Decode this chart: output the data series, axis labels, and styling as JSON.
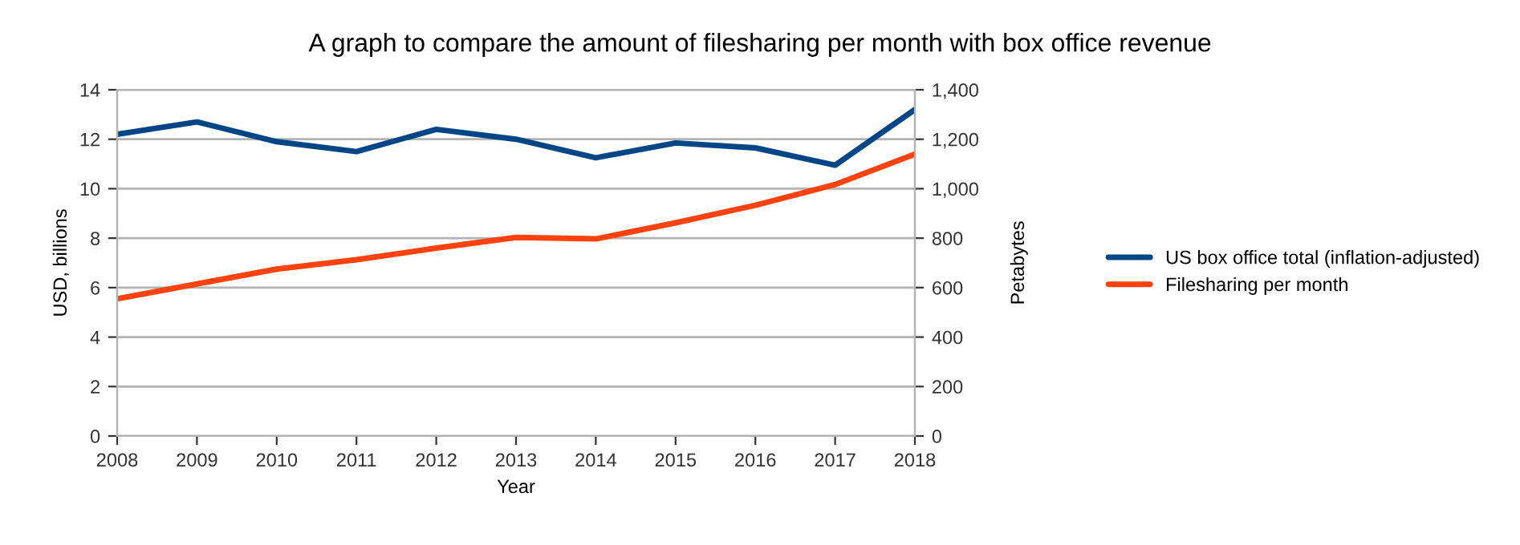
{
  "chart_data": {
    "type": "line",
    "title": "A graph to compare the amount of filesharing per month with box office revenue",
    "xlabel": "Year",
    "ylabel": "USD, billions",
    "y2label": "Petabytes",
    "x": [
      2008,
      2009,
      2010,
      2011,
      2012,
      2013,
      2014,
      2015,
      2016,
      2017,
      2018
    ],
    "series": [
      {
        "name": "US box office total (inflation-adjusted)",
        "color": "#004586",
        "values": [
          12.2,
          12.7,
          11.9,
          11.5,
          12.4,
          12.0,
          11.25,
          11.85,
          11.65,
          10.95,
          13.2
        ]
      },
      {
        "name": "Filesharing per month",
        "color": "#ff420e",
        "axis": "y2",
        "values": [
          555,
          615,
          675,
          713,
          760,
          803,
          797,
          862,
          933,
          1017,
          1140
        ]
      }
    ],
    "xlim": [
      2008,
      2018
    ],
    "xticks": [
      2008,
      2009,
      2010,
      2011,
      2012,
      2013,
      2014,
      2015,
      2016,
      2017,
      2018
    ],
    "ylim": [
      0,
      14
    ],
    "yticks": [
      0,
      2,
      4,
      6,
      8,
      10,
      12,
      14
    ],
    "y2lim": [
      0,
      1400
    ],
    "y2ticks": [
      0,
      {
        "value": 200,
        "label": "200"
      },
      {
        "value": 400,
        "label": "400"
      },
      {
        "value": 600,
        "label": "600"
      },
      {
        "value": 800,
        "label": "800"
      },
      {
        "value": 1000,
        "label": "1,000"
      },
      {
        "value": 1200,
        "label": "1,200"
      },
      {
        "value": 1400,
        "label": "1,400"
      }
    ],
    "grid": "y",
    "legend": "right",
    "marker": "none",
    "line_style": "solid"
  }
}
